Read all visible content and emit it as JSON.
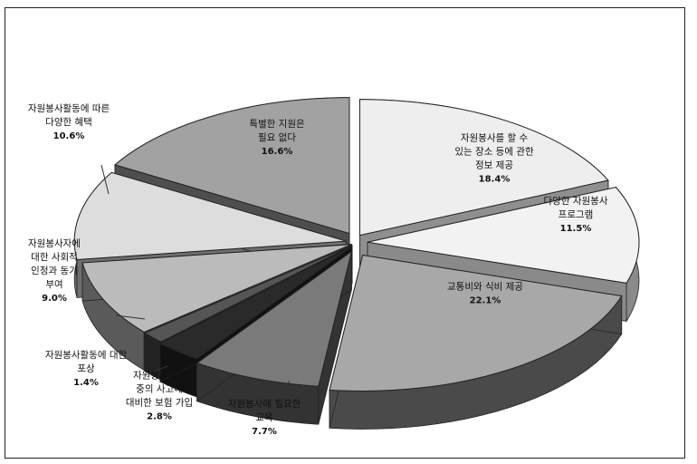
{
  "chart_data": {
    "type": "pie",
    "slices": [
      {
        "lines": [
          "자원봉사를 할 수",
          "있는 장소 등에 관한",
          "정보 제공"
        ],
        "value": "18.4%",
        "pct": 18.4,
        "color": "#eeeeee",
        "side": "#8f8f8f",
        "explode": 10
      },
      {
        "lines": [
          "다양한 자원봉사",
          "프로그램"
        ],
        "value": "11.5%",
        "pct": 11.5,
        "color": "#f2f2f2",
        "side": "#8a8a8a",
        "explode": 14
      },
      {
        "lines": [
          "교통비와 식비 제공"
        ],
        "value": "22.1%",
        "pct": 22.1,
        "color": "#a8a8a8",
        "side": "#4a4a4a",
        "explode": 16
      },
      {
        "lines": [
          "자원봉사에 필요한",
          "교육"
        ],
        "value": "7.7%",
        "pct": 7.7,
        "color": "#7a7a7a",
        "side": "#333333",
        "explode": 10
      },
      {
        "lines": [
          "자원봉사활동",
          "중의 사고에",
          "대비한 보험 가입"
        ],
        "value": "2.8%",
        "pct": 2.8,
        "color": "#2a2a2a",
        "side": "#111111",
        "explode": 6
      },
      {
        "lines": [
          "자원봉사활동에 대한",
          "포상"
        ],
        "value": "1.4%",
        "pct": 1.4,
        "color": "#555555",
        "side": "#222222",
        "explode": 4
      },
      {
        "lines": [
          "자원봉사자에",
          "대한 사회적",
          "인정과 동기",
          "부여"
        ],
        "value": "9.0%",
        "pct": 9.0,
        "color": "#bbbbbb",
        "side": "#5a5a5a",
        "explode": 4
      },
      {
        "lines": [
          "자원봉사활동에 따른",
          "다양한 혜택"
        ],
        "value": "10.6%",
        "pct": 10.6,
        "color": "#dddddd",
        "side": "#6e6e6e",
        "explode": 10
      },
      {
        "lines": [
          "특별한 지원은",
          "필요 없다"
        ],
        "value": "16.6%",
        "pct": 16.6,
        "color": "#a2a2a2",
        "side": "#4e4e4e",
        "explode": 12
      }
    ]
  }
}
